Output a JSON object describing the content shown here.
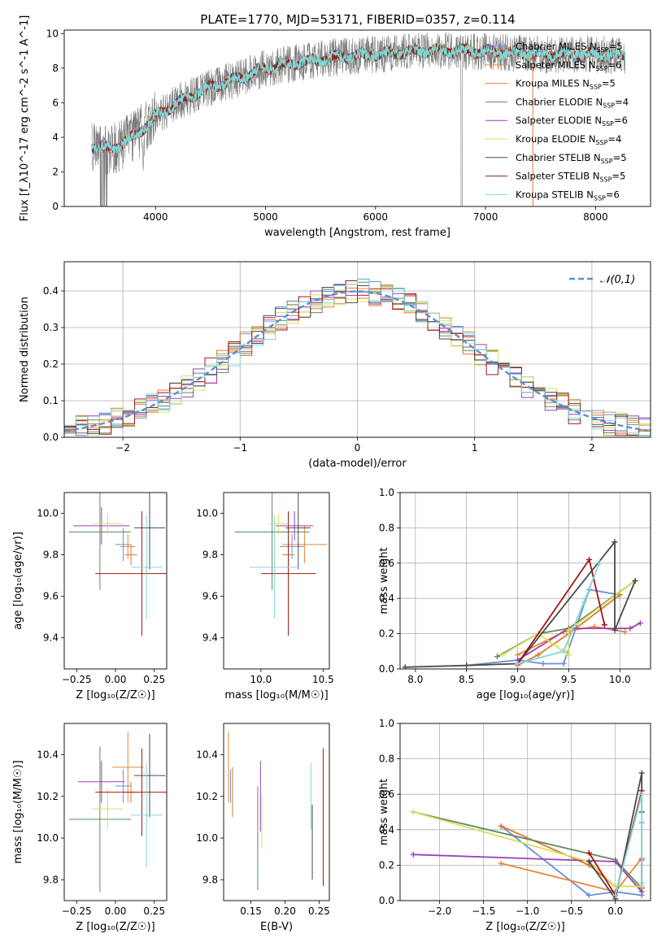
{
  "title": "PLATE=1770, MJD=53171, FIBERID=0357, z=0.114",
  "colors": {
    "series": [
      "#6a8fd8",
      "#e8873a",
      "#e07a2a",
      "#5d8a5d",
      "#9b3fb5",
      "#d8e05a",
      "#4a4a4a",
      "#a01818",
      "#7fd6d6"
    ],
    "gray_data": "#7a7a7a",
    "normal_curve": "#5b8fd6",
    "grid": "#b0b0b0"
  },
  "chart_data": [
    {
      "id": "spectrum",
      "type": "line",
      "xlabel": "wavelength [Angstrom, rest frame]",
      "ylabel": "Flux [f_λ10^-17 erg cm^-2 s^-1 A^-1]",
      "xlim": [
        3170,
        8500
      ],
      "ylim": [
        0,
        10.2
      ],
      "xticks": [
        4000,
        5000,
        6000,
        7000,
        8000
      ],
      "yticks": [
        0,
        2,
        4,
        6,
        8,
        10
      ],
      "grid": false,
      "legend_position": "right",
      "data_range": [
        3420,
        8270
      ],
      "continuum": {
        "x": [
          3420,
          3600,
          3800,
          4000,
          4200,
          4500,
          4800,
          5000,
          5300,
          5600,
          6000,
          6400,
          6800,
          7200,
          7600,
          8000,
          8270
        ],
        "y": [
          3.5,
          3.3,
          4.0,
          5.2,
          6.0,
          6.9,
          7.5,
          8.0,
          8.3,
          8.6,
          8.8,
          9.0,
          9.0,
          8.9,
          8.8,
          8.8,
          8.7
        ]
      },
      "series": [
        {
          "name": "Chabrier MILES",
          "nssp": "5"
        },
        {
          "name": "Salpeter MILES",
          "nssp": "6"
        },
        {
          "name": "Kroupa MILES",
          "nssp": "5"
        },
        {
          "name": "Chabrier ELODIE",
          "nssp": "4"
        },
        {
          "name": "Salpeter ELODIE",
          "nssp": "6"
        },
        {
          "name": "Kroupa ELODIE",
          "nssp": "4"
        },
        {
          "name": "Chabrier STELIB",
          "nssp": "5"
        },
        {
          "name": "Salpeter STELIB",
          "nssp": "5"
        },
        {
          "name": "Kroupa STELIB",
          "nssp": "6"
        }
      ]
    },
    {
      "id": "residuals",
      "type": "histogram",
      "xlabel": "(data-model)/error",
      "ylabel": "Normed distribution",
      "xlim": [
        -2.5,
        2.5
      ],
      "ylim": [
        0,
        0.48
      ],
      "xticks": [
        -2,
        -1,
        0,
        1,
        2
      ],
      "xtick_labels": [
        "−2",
        "−1",
        "0",
        "1",
        "2"
      ],
      "yticks": [
        0.0,
        0.1,
        0.2,
        0.3,
        0.4
      ],
      "ytick_labels": [
        "0.0",
        "0.1",
        "0.2",
        "0.3",
        "0.4"
      ],
      "grid": true,
      "bins": [
        -2.5,
        2.5,
        50
      ],
      "legend": "𝒩(0,1)",
      "legend_position": "top-right"
    },
    {
      "id": "age_Z",
      "type": "errorbar",
      "xlabel": "Z [log₁₀(Z/Z☉)]",
      "ylabel": "age  [log₁₀(age/yr)]",
      "xlim": [
        -0.33,
        0.33
      ],
      "ylim": [
        9.25,
        10.1
      ],
      "xticks": [
        -0.25,
        0.0,
        0.25
      ],
      "xtick_labels": [
        "−0.25",
        "0.00",
        "0.25"
      ],
      "yticks": [
        9.4,
        9.6,
        9.8,
        10.0
      ],
      "ytick_labels": [
        "9.4",
        "9.6",
        "9.8",
        "10.0"
      ],
      "points": [
        {
          "c": 0,
          "x": 0.05,
          "xe": 0.05,
          "y": 9.85,
          "ye": 0.08
        },
        {
          "c": 1,
          "x": 0.08,
          "xe": 0.05,
          "y": 9.84,
          "ye": 0.06
        },
        {
          "c": 2,
          "x": 0.1,
          "xe": 0.04,
          "y": 9.8,
          "ye": 0.05
        },
        {
          "c": 3,
          "x": -0.1,
          "xe": 0.2,
          "y": 9.91,
          "ye": 0.28
        },
        {
          "c": 4,
          "x": -0.09,
          "xe": 0.18,
          "y": 9.94,
          "ye": 0.09
        },
        {
          "c": 5,
          "x": -0.05,
          "xe": 0.1,
          "y": 9.95,
          "ye": 0.05
        },
        {
          "c": 6,
          "x": 0.22,
          "xe": 0.1,
          "y": 9.93,
          "ye": 0.2
        },
        {
          "c": 7,
          "x": 0.17,
          "xe": 0.3,
          "y": 9.71,
          "ye": 0.3
        },
        {
          "c": 8,
          "x": 0.2,
          "xe": 0.1,
          "y": 9.74,
          "ye": 0.25
        }
      ]
    },
    {
      "id": "age_mass",
      "type": "errorbar",
      "xlabel": "mass [log₁₀(M/M☉)]",
      "xlim": [
        9.7,
        10.55
      ],
      "ylim": [
        9.25,
        10.1
      ],
      "xticks": [
        10.0,
        10.5
      ],
      "xtick_labels": [
        "10.0",
        "10.5"
      ],
      "yticks": [
        9.4,
        9.6,
        9.8,
        10.0
      ],
      "ytick_labels": [
        "9.4",
        "9.6",
        "9.8",
        "10.0"
      ],
      "points": [
        {
          "c": 0,
          "x": 10.25,
          "xe": 0.1,
          "y": 9.84,
          "ye": 0.06
        },
        {
          "c": 1,
          "x": 10.35,
          "xe": 0.18,
          "y": 9.85,
          "ye": 0.09
        },
        {
          "c": 2,
          "x": 10.22,
          "xe": 0.05,
          "y": 9.8,
          "ye": 0.05
        },
        {
          "c": 3,
          "x": 10.09,
          "xe": 0.3,
          "y": 9.91,
          "ye": 0.28
        },
        {
          "c": 4,
          "x": 10.27,
          "xe": 0.15,
          "y": 9.94,
          "ye": 0.07
        },
        {
          "c": 5,
          "x": 10.14,
          "xe": 0.08,
          "y": 9.95,
          "ye": 0.05
        },
        {
          "c": 6,
          "x": 10.3,
          "xe": 0.1,
          "y": 9.93,
          "ye": 0.2
        },
        {
          "c": 7,
          "x": 10.22,
          "xe": 0.22,
          "y": 9.71,
          "ye": 0.3
        },
        {
          "c": 8,
          "x": 10.11,
          "xe": 0.2,
          "y": 9.74,
          "ye": 0.25
        }
      ]
    },
    {
      "id": "weight_age",
      "type": "line",
      "xlabel": "age  [log₁₀(age/yr)]",
      "ylabel": "mass weight",
      "xlim": [
        7.85,
        10.3
      ],
      "ylim": [
        0,
        1.0
      ],
      "xticks": [
        8.0,
        8.5,
        9.0,
        9.5,
        10.0
      ],
      "xtick_labels": [
        "8.0",
        "8.5",
        "9.0",
        "9.5",
        "10.0"
      ],
      "yticks": [
        0.0,
        0.2,
        0.4,
        0.6,
        0.8,
        1.0
      ],
      "ytick_labels": [
        "0.0",
        "0.2",
        "0.4",
        "0.6",
        "0.8",
        "1.0"
      ],
      "grid": true,
      "series": [
        {
          "c": 0,
          "x": [
            8.5,
            9.0,
            9.25,
            9.45,
            9.7,
            10.0
          ],
          "y": [
            0.02,
            0.05,
            0.03,
            0.03,
            0.45,
            0.42
          ]
        },
        {
          "c": 1,
          "x": [
            9.0,
            9.45,
            9.75,
            10.05
          ],
          "y": [
            0.08,
            0.21,
            0.24,
            0.21
          ]
        },
        {
          "c": 2,
          "x": [
            9.0,
            9.2,
            9.5,
            10.0
          ],
          "y": [
            0.02,
            0.08,
            0.2,
            0.42
          ]
        },
        {
          "c": 3,
          "x": [
            8.8,
            9.2,
            9.5,
            10.15
          ],
          "y": [
            0.07,
            0.2,
            0.23,
            0.5
          ]
        },
        {
          "c": 4,
          "x": [
            9.0,
            9.5,
            10.1,
            10.2
          ],
          "y": [
            0.05,
            0.23,
            0.23,
            0.26
          ]
        },
        {
          "c": 5,
          "x": [
            8.85,
            9.2,
            9.5,
            9.5,
            10.15
          ],
          "y": [
            0.08,
            0.2,
            0.08,
            0.22,
            0.5
          ]
        },
        {
          "c": 6,
          "x": [
            7.9,
            8.5,
            9.0,
            9.95,
            9.95,
            10.15
          ],
          "y": [
            0.01,
            0.02,
            0.03,
            0.72,
            0.22,
            0.5
          ]
        },
        {
          "c": 7,
          "x": [
            9.0,
            9.7,
            9.85
          ],
          "y": [
            0.03,
            0.62,
            0.25
          ]
        },
        {
          "c": 8,
          "x": [
            9.0,
            9.45,
            9.65,
            9.8
          ],
          "y": [
            0.03,
            0.1,
            0.38,
            0.6
          ]
        }
      ]
    },
    {
      "id": "mass_Z",
      "type": "errorbar",
      "xlabel": "Z [log₁₀(Z/Z☉)]",
      "ylabel": "mass [log₁₀(M/M☉)]",
      "xlim": [
        -0.33,
        0.33
      ],
      "ylim": [
        9.7,
        10.55
      ],
      "xticks": [
        -0.25,
        0.0,
        0.25
      ],
      "xtick_labels": [
        "−0.25",
        "0.00",
        "0.25"
      ],
      "yticks": [
        9.8,
        10.0,
        10.2,
        10.4
      ],
      "ytick_labels": [
        "9.8",
        "10.0",
        "10.2",
        "10.4"
      ],
      "points": [
        {
          "c": 0,
          "x": 0.05,
          "xe": 0.05,
          "y": 10.25,
          "ye": 0.08
        },
        {
          "c": 1,
          "x": 0.08,
          "xe": 0.1,
          "y": 10.34,
          "ye": 0.17
        },
        {
          "c": 2,
          "x": 0.1,
          "xe": 0.04,
          "y": 10.22,
          "ye": 0.05
        },
        {
          "c": 3,
          "x": -0.1,
          "xe": 0.2,
          "y": 10.09,
          "ye": 0.35
        },
        {
          "c": 4,
          "x": -0.09,
          "xe": 0.15,
          "y": 10.27,
          "ye": 0.1
        },
        {
          "c": 5,
          "x": -0.05,
          "xe": 0.1,
          "y": 10.14,
          "ye": 0.1
        },
        {
          "c": 6,
          "x": 0.22,
          "xe": 0.1,
          "y": 10.3,
          "ye": 0.2
        },
        {
          "c": 7,
          "x": 0.17,
          "xe": 0.3,
          "y": 10.22,
          "ye": 0.21
        },
        {
          "c": 8,
          "x": 0.2,
          "xe": 0.1,
          "y": 10.11,
          "ye": 0.25
        }
      ]
    },
    {
      "id": "mass_ebv",
      "type": "errorbar",
      "xlabel": "E(B-V)",
      "xlim": [
        0.11,
        0.265
      ],
      "ylim": [
        9.7,
        10.55
      ],
      "xticks": [
        0.15,
        0.2,
        0.25
      ],
      "xtick_labels": [
        "0.15",
        "0.20",
        "0.25"
      ],
      "yticks": [
        9.8,
        10.0,
        10.2,
        10.4
      ],
      "ytick_labels": [
        "9.8",
        "10.0",
        "10.2",
        "10.4"
      ],
      "points": [
        {
          "c": 0,
          "x": 0.12,
          "y": 10.25,
          "ye": 0.08
        },
        {
          "c": 1,
          "x": 0.117,
          "y": 10.34,
          "ye": 0.17
        },
        {
          "c": 2,
          "x": 0.123,
          "y": 10.22,
          "ye": 0.12
        },
        {
          "c": 3,
          "x": 0.16,
          "y": 10.0,
          "ye": 0.25
        },
        {
          "c": 4,
          "x": 0.164,
          "y": 10.2,
          "ye": 0.17
        },
        {
          "c": 5,
          "x": 0.166,
          "y": 10.08,
          "ye": 0.13
        },
        {
          "c": 6,
          "x": 0.24,
          "y": 9.98,
          "ye": 0.18
        },
        {
          "c": 7,
          "x": 0.256,
          "y": 10.1,
          "ye": 0.33
        },
        {
          "c": 8,
          "x": 0.238,
          "y": 10.2,
          "ye": 0.16
        }
      ]
    },
    {
      "id": "weight_Z",
      "type": "line",
      "xlabel": "Z [log₁₀(Z/Z☉)]",
      "ylabel": "mass weight",
      "xlim": [
        -2.45,
        0.4
      ],
      "ylim": [
        0,
        1.0
      ],
      "xticks": [
        -2.0,
        -1.5,
        -1.0,
        -0.5,
        0.0
      ],
      "xtick_labels": [
        "−2.0",
        "−1.5",
        "−1.0",
        "−0.5",
        "0.0"
      ],
      "yticks": [
        0.0,
        0.2,
        0.4,
        0.6,
        0.8,
        1.0
      ],
      "ytick_labels": [
        "0.0",
        "0.2",
        "0.4",
        "0.6",
        "0.8",
        "1.0"
      ],
      "grid": true,
      "series": [
        {
          "c": 0,
          "x": [
            -1.3,
            -0.3,
            0.0,
            0.3,
            0.3
          ],
          "y": [
            0.42,
            0.03,
            0.05,
            0.03,
            0.44
          ]
        },
        {
          "c": 1,
          "x": [
            -1.3,
            0.0,
            0.3,
            0.3
          ],
          "y": [
            0.21,
            0.05,
            0.24,
            0.08
          ]
        },
        {
          "c": 2,
          "x": [
            -1.3,
            -0.3,
            0.0,
            0.3
          ],
          "y": [
            0.42,
            0.2,
            0.08,
            0.08
          ]
        },
        {
          "c": 3,
          "x": [
            -2.3,
            0.0,
            0.3
          ],
          "y": [
            0.5,
            0.23,
            0.07
          ]
        },
        {
          "c": 4,
          "x": [
            -2.3,
            0.0,
            0.3,
            0.3
          ],
          "y": [
            0.26,
            0.22,
            0.05,
            0.23
          ]
        },
        {
          "c": 5,
          "x": [
            -2.3,
            -0.3,
            0.0,
            0.3
          ],
          "y": [
            0.5,
            0.22,
            0.08,
            0.08
          ]
        },
        {
          "c": 6,
          "x": [
            -0.3,
            0.0,
            0.3,
            0.3
          ],
          "y": [
            0.22,
            0.01,
            0.72,
            0.5
          ]
        },
        {
          "c": 7,
          "x": [
            -0.3,
            0.0,
            0.3
          ],
          "y": [
            0.27,
            0.03,
            0.62
          ]
        },
        {
          "c": 8,
          "x": [
            0.0,
            0.3,
            0.3
          ],
          "y": [
            0.03,
            0.6,
            0.1
          ]
        }
      ]
    }
  ]
}
